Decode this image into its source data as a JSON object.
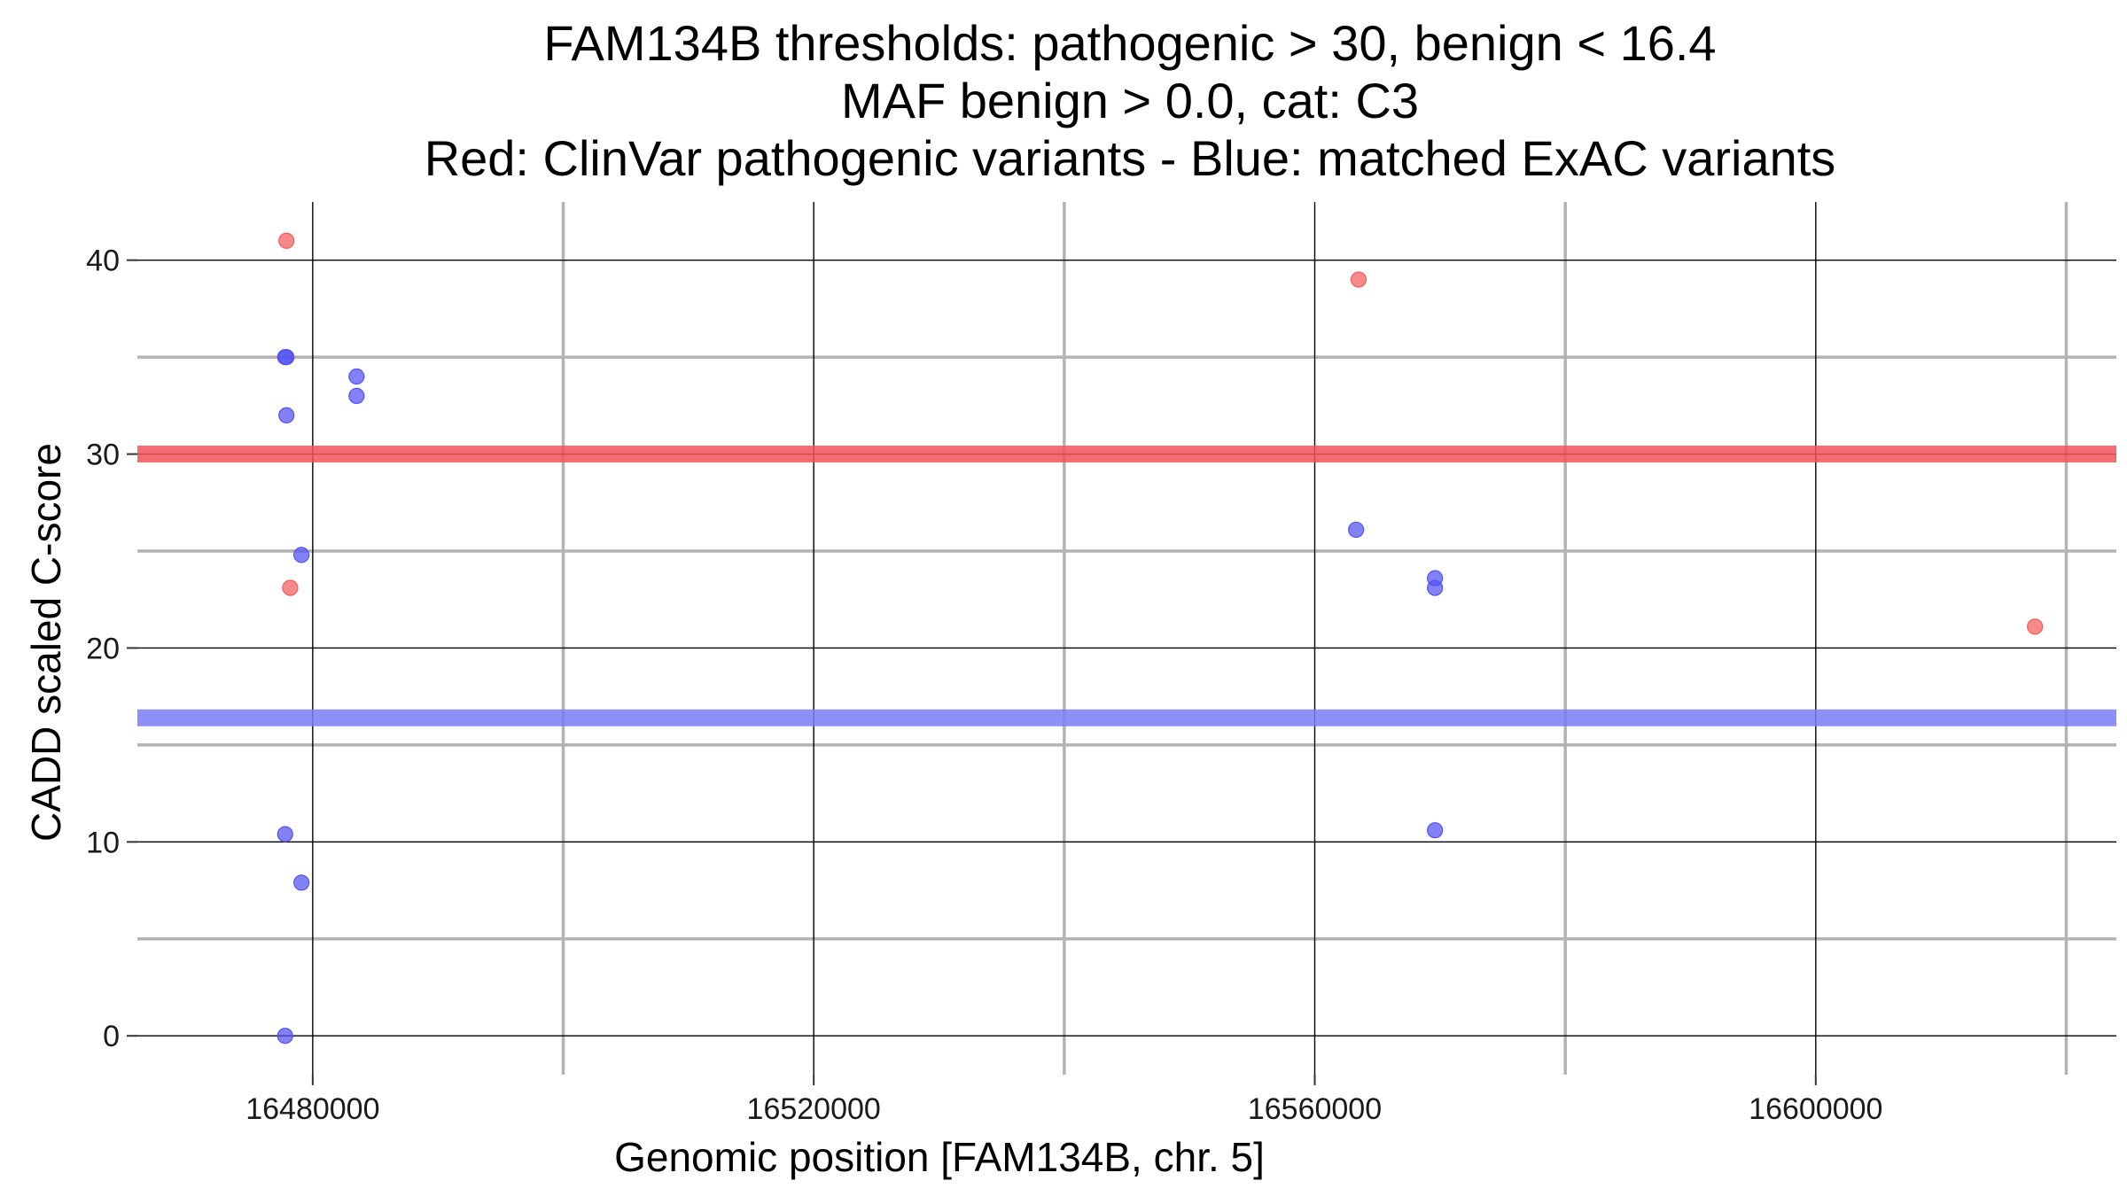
{
  "chart_data": {
    "type": "scatter",
    "title_lines": [
      "FAM134B thresholds: pathogenic > 30, benign < 16.4",
      "MAF benign > 0.0, cat: C3",
      "Red: ClinVar pathogenic variants - Blue: matched ExAC variants"
    ],
    "xlabel": "Genomic position [FAM134B, chr. 5]",
    "ylabel": "CADD scaled C-score",
    "xlim": [
      16466000,
      16624000
    ],
    "ylim": [
      -2,
      43
    ],
    "x_major_ticks": [
      16480000,
      16520000,
      16560000,
      16600000
    ],
    "x_minor_gridlines": [
      16500000,
      16540000,
      16580000,
      16620000
    ],
    "y_major_ticks": [
      0,
      10,
      20,
      30,
      40
    ],
    "y_minor_gridlines": [
      5,
      15,
      25,
      35
    ],
    "x_tick_labels": [
      "16480000",
      "16520000",
      "16560000",
      "16600000"
    ],
    "y_tick_labels": [
      "0",
      "10",
      "20",
      "30",
      "40"
    ],
    "grid": true,
    "thresholds": [
      {
        "name": "pathogenic",
        "value": 30,
        "color": "#f2545b"
      },
      {
        "name": "benign",
        "value": 16.4,
        "color": "#7b7bf7"
      }
    ],
    "series": [
      {
        "color": "#f25c5c",
        "points": [
          {
            "x": 16477900,
            "y": 41
          },
          {
            "x": 16478200,
            "y": 23.1
          },
          {
            "x": 16563500,
            "y": 39
          },
          {
            "x": 16617500,
            "y": 21.1
          }
        ]
      },
      {
        "color": "#5252f2",
        "points": [
          {
            "x": 16477800,
            "y": 35
          },
          {
            "x": 16477900,
            "y": 35
          },
          {
            "x": 16477900,
            "y": 32
          },
          {
            "x": 16483500,
            "y": 34
          },
          {
            "x": 16483500,
            "y": 33
          },
          {
            "x": 16479100,
            "y": 24.8
          },
          {
            "x": 16477800,
            "y": 10.4
          },
          {
            "x": 16479100,
            "y": 7.9
          },
          {
            "x": 16477800,
            "y": 0
          },
          {
            "x": 16563300,
            "y": 26.1
          },
          {
            "x": 16569600,
            "y": 23.6
          },
          {
            "x": 16569600,
            "y": 23.1
          },
          {
            "x": 16569600,
            "y": 10.6
          }
        ]
      }
    ]
  }
}
